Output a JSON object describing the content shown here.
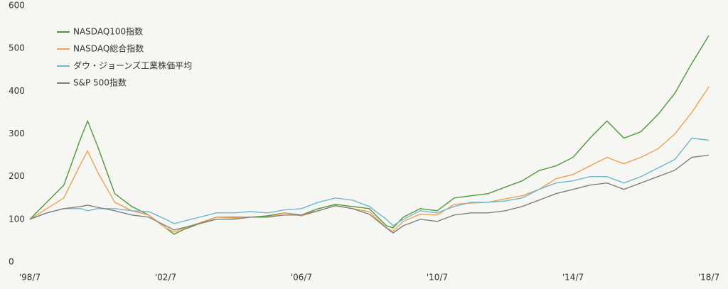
{
  "chart_data": {
    "type": "line",
    "x": [
      1998.5,
      1999.0,
      1999.5,
      2000.0,
      2000.2,
      2000.5,
      2001.0,
      2001.5,
      2002.0,
      2002.5,
      2002.75,
      2003.0,
      2003.5,
      2004.0,
      2004.5,
      2005.0,
      2005.5,
      2006.0,
      2006.5,
      2007.0,
      2007.5,
      2008.0,
      2008.5,
      2009.0,
      2009.2,
      2009.5,
      2010.0,
      2010.5,
      2011.0,
      2011.5,
      2012.0,
      2012.5,
      2013.0,
      2013.5,
      2014.0,
      2014.5,
      2015.0,
      2015.5,
      2016.0,
      2016.5,
      2017.0,
      2017.5,
      2018.0,
      2018.5
    ],
    "series": [
      {
        "name": "NASDAQ100指数",
        "color": "#4e9a3a",
        "values": [
          100,
          140,
          180,
          290,
          330,
          270,
          160,
          130,
          110,
          80,
          65,
          75,
          90,
          105,
          105,
          105,
          108,
          115,
          110,
          125,
          135,
          130,
          125,
          85,
          80,
          105,
          125,
          120,
          150,
          155,
          160,
          175,
          190,
          214,
          225,
          245,
          290,
          330,
          290,
          305,
          345,
          395,
          465,
          530
        ]
      },
      {
        "name": "NASDAQ総合指数",
        "color": "#f0a050",
        "values": [
          100,
          125,
          150,
          230,
          260,
          210,
          140,
          120,
          110,
          80,
          70,
          78,
          92,
          105,
          103,
          105,
          105,
          115,
          108,
          120,
          132,
          125,
          118,
          80,
          72,
          95,
          112,
          110,
          135,
          138,
          140,
          148,
          155,
          170,
          195,
          205,
          225,
          245,
          230,
          245,
          265,
          300,
          350,
          410
        ]
      },
      {
        "name": "ダウ・ジョーンズ工業株価平均",
        "color": "#6fb8d0",
        "values": [
          100,
          115,
          125,
          125,
          120,
          125,
          125,
          120,
          118,
          100,
          90,
          95,
          105,
          115,
          115,
          118,
          115,
          122,
          125,
          140,
          150,
          145,
          130,
          100,
          85,
          100,
          120,
          115,
          130,
          140,
          140,
          143,
          150,
          170,
          185,
          190,
          200,
          200,
          185,
          200,
          220,
          240,
          290,
          285
        ]
      },
      {
        "name": "S&P 500指数",
        "color": "#808080",
        "values": [
          100,
          115,
          125,
          130,
          133,
          128,
          120,
          110,
          105,
          85,
          75,
          80,
          90,
          100,
          100,
          105,
          105,
          110,
          110,
          120,
          132,
          125,
          112,
          80,
          68,
          85,
          100,
          95,
          110,
          115,
          115,
          120,
          130,
          145,
          160,
          170,
          180,
          185,
          170,
          185,
          200,
          215,
          245,
          250
        ]
      }
    ],
    "xlim": [
      1998.5,
      2018.5
    ],
    "xticks": [
      {
        "value": 1998.5,
        "label": "'98/7"
      },
      {
        "value": 2002.5,
        "label": "'02/7"
      },
      {
        "value": 2006.5,
        "label": "'06/7"
      },
      {
        "value": 2010.5,
        "label": "'10/7"
      },
      {
        "value": 2014.5,
        "label": "'14/7"
      },
      {
        "value": 2018.5,
        "label": "'18/7"
      }
    ],
    "ylim": [
      0,
      600
    ],
    "yticks": [
      0,
      100,
      200,
      300,
      400,
      500,
      600
    ]
  }
}
